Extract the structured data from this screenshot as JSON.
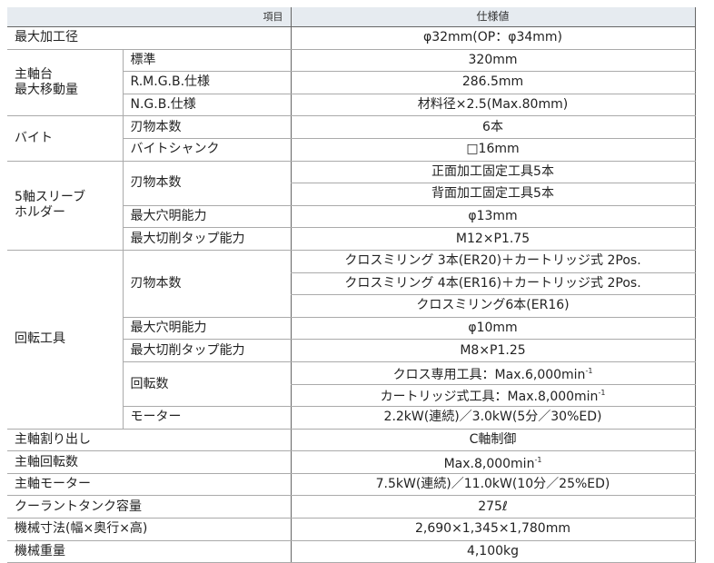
{
  "table": {
    "header": [
      "項目",
      "仕様値"
    ],
    "groups": [
      {
        "label": [
          "最大加工径"
        ],
        "values": [
          {
            "text": "φ32mm(OP：φ34mm)"
          }
        ]
      },
      {
        "label": [
          "主軸台",
          "最大移動量"
        ],
        "subs": [
          {
            "label": "標準",
            "values": [
              {
                "text": "320mm"
              }
            ]
          },
          {
            "label": "R.M.G.B.仕様",
            "values": [
              {
                "text": "286.5mm"
              }
            ]
          },
          {
            "label": "N.G.B.仕様",
            "values": [
              {
                "text": "材料径×2.5(Max.80mm)"
              }
            ]
          }
        ]
      },
      {
        "label": [
          "バイト"
        ],
        "subs": [
          {
            "label": "刃物本数",
            "values": [
              {
                "text": "6本"
              }
            ]
          },
          {
            "label": "バイトシャンク",
            "values": [
              {
                "text": "□16mm"
              }
            ]
          }
        ]
      },
      {
        "label": [
          "5軸スリーブ",
          "ホルダー"
        ],
        "subs": [
          {
            "label": "刃物本数",
            "values": [
              {
                "text": "正面加工固定工具5本"
              },
              {
                "text": "背面加工固定工具5本"
              }
            ]
          },
          {
            "label": "最大穴明能力",
            "values": [
              {
                "text": "φ13mm"
              }
            ]
          },
          {
            "label": "最大切削タップ能力",
            "values": [
              {
                "text": "M12×P1.75"
              }
            ]
          }
        ]
      },
      {
        "label": [
          "回転工具"
        ],
        "subs": [
          {
            "label": "刃物本数",
            "values": [
              {
                "text": "クロスミリング 3本(ER20)＋カートリッジ式 2Pos."
              },
              {
                "text": "クロスミリング 4本(ER16)＋カートリッジ式 2Pos."
              },
              {
                "text": "クロスミリング6本(ER16)"
              }
            ]
          },
          {
            "label": "最大穴明能力",
            "values": [
              {
                "text": "φ10mm"
              }
            ]
          },
          {
            "label": "最大切削タップ能力",
            "values": [
              {
                "text": "M8×P1.25"
              }
            ]
          },
          {
            "label": "回転数",
            "values": [
              {
                "text": "クロス専用工具：Max.6,000min",
                "sup": "-1"
              },
              {
                "text": "カートリッジ式工具：Max.8,000min",
                "sup": "-1"
              }
            ]
          },
          {
            "label": "モーター",
            "values": [
              {
                "text": "2.2kW(連続)／3.0kW(5分／30%ED)"
              }
            ]
          }
        ]
      },
      {
        "label": [
          "主軸割り出し"
        ],
        "values": [
          {
            "text": "C軸制御"
          }
        ]
      },
      {
        "label": [
          "主軸回転数"
        ],
        "values": [
          {
            "text": "Max.8,000min",
            "sup": "-1"
          }
        ]
      },
      {
        "label": [
          "主軸モーター"
        ],
        "values": [
          {
            "text": "7.5kW(連続)／11.0kW(10分／25%ED)"
          }
        ]
      },
      {
        "label": [
          "クーラントタンク容量"
        ],
        "values": [
          {
            "text": "275ℓ"
          }
        ]
      },
      {
        "label": [
          "機械寸法(幅×奥行×高)"
        ],
        "values": [
          {
            "text": "2,690×1,345×1,780mm"
          }
        ]
      },
      {
        "label": [
          "機械重量"
        ],
        "values": [
          {
            "text": "4,100kg"
          }
        ]
      }
    ]
  }
}
